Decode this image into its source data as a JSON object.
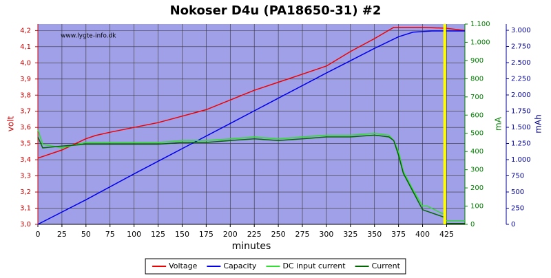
{
  "chart_data": {
    "type": "line",
    "title": "Nokoser D4u (PA18650-31) #2",
    "xlabel": "minutes",
    "ylabel": "volt",
    "y2label": "mA",
    "y3label": "mAh",
    "watermark": "www.lygte-info.dk",
    "xlim": [
      0,
      444
    ],
    "xticks": [
      0,
      25,
      50,
      75,
      100,
      125,
      150,
      175,
      200,
      225,
      250,
      275,
      300,
      325,
      350,
      375,
      400,
      425
    ],
    "ylim": [
      3.0,
      4.24
    ],
    "yticks": [
      {
        "value": 3.0,
        "label": "3,0"
      },
      {
        "value": 3.1,
        "label": "3,1"
      },
      {
        "value": 3.2,
        "label": "3,2"
      },
      {
        "value": 3.3,
        "label": "3,3"
      },
      {
        "value": 3.4,
        "label": "3,4"
      },
      {
        "value": 3.5,
        "label": "3,5"
      },
      {
        "value": 3.6,
        "label": "3,6"
      },
      {
        "value": 3.7,
        "label": "3,7"
      },
      {
        "value": 3.8,
        "label": "3,8"
      },
      {
        "value": 3.9,
        "label": "3,9"
      },
      {
        "value": 4.0,
        "label": "4,0"
      },
      {
        "value": 4.1,
        "label": "4,1"
      },
      {
        "value": 4.2,
        "label": "4,2"
      }
    ],
    "y2lim": [
      0,
      1100
    ],
    "y2ticks": [
      0,
      100,
      200,
      300,
      400,
      500,
      600,
      700,
      800,
      900,
      {
        "value": 1000,
        "label": "1.000"
      },
      {
        "value": 1100,
        "label": "1.100"
      }
    ],
    "y3lim": [
      0,
      3096
    ],
    "y3ticks": [
      0,
      250,
      500,
      750,
      {
        "value": 1000,
        "label": "1.000"
      },
      {
        "value": 1250,
        "label": "1.250"
      },
      {
        "value": 1500,
        "label": "1.500"
      },
      {
        "value": 1750,
        "label": "1.750"
      },
      {
        "value": 2000,
        "label": "2.000"
      },
      {
        "value": 2250,
        "label": "2.250"
      },
      {
        "value": 2500,
        "label": "2.500"
      },
      {
        "value": 2750,
        "label": "2.750"
      },
      {
        "value": 3000,
        "label": "3.000"
      }
    ],
    "grid": true,
    "legend": "bottom",
    "vline": {
      "x": 423,
      "color": "#ffff00"
    },
    "series": [
      {
        "name": "Voltage",
        "color": "#ee0000",
        "axis": "y",
        "x": [
          0,
          10,
          25,
          50,
          60,
          75,
          100,
          125,
          150,
          175,
          200,
          225,
          250,
          275,
          300,
          325,
          350,
          370,
          400,
          422,
          430,
          444
        ],
        "values": [
          3.41,
          3.43,
          3.46,
          3.53,
          3.55,
          3.57,
          3.6,
          3.63,
          3.67,
          3.71,
          3.77,
          3.83,
          3.88,
          3.93,
          3.98,
          4.07,
          4.15,
          4.22,
          4.22,
          4.215,
          4.21,
          4.2
        ]
      },
      {
        "name": "Capacity",
        "color": "#0000ee",
        "axis": "y3",
        "x": [
          0,
          50,
          100,
          150,
          200,
          250,
          300,
          350,
          375,
          390,
          410,
          444
        ],
        "values": [
          0,
          380,
          780,
          1170,
          1560,
          1950,
          2340,
          2720,
          2900,
          2970,
          2990,
          2990
        ]
      },
      {
        "name": "DC input current",
        "color": "#33dd33",
        "axis": "y2",
        "x": [
          0,
          5,
          25,
          50,
          75,
          100,
          125,
          150,
          175,
          200,
          225,
          250,
          275,
          300,
          325,
          350,
          365,
          370,
          375,
          380,
          390,
          400,
          405,
          420,
          423,
          424,
          444
        ],
        "values": [
          520,
          440,
          420,
          450,
          450,
          450,
          450,
          460,
          460,
          470,
          480,
          470,
          480,
          490,
          490,
          500,
          490,
          460,
          400,
          290,
          190,
          100,
          100,
          60,
          60,
          20,
          20
        ]
      },
      {
        "name": "Current",
        "color": "#006600",
        "axis": "y2",
        "x": [
          0,
          5,
          25,
          50,
          75,
          100,
          125,
          150,
          175,
          200,
          225,
          250,
          275,
          300,
          325,
          350,
          365,
          370,
          375,
          380,
          390,
          400,
          422,
          423,
          444
        ],
        "values": [
          480,
          420,
          430,
          440,
          440,
          440,
          440,
          450,
          450,
          460,
          470,
          460,
          470,
          480,
          480,
          490,
          480,
          460,
          380,
          280,
          180,
          80,
          40,
          5,
          5
        ]
      }
    ]
  }
}
